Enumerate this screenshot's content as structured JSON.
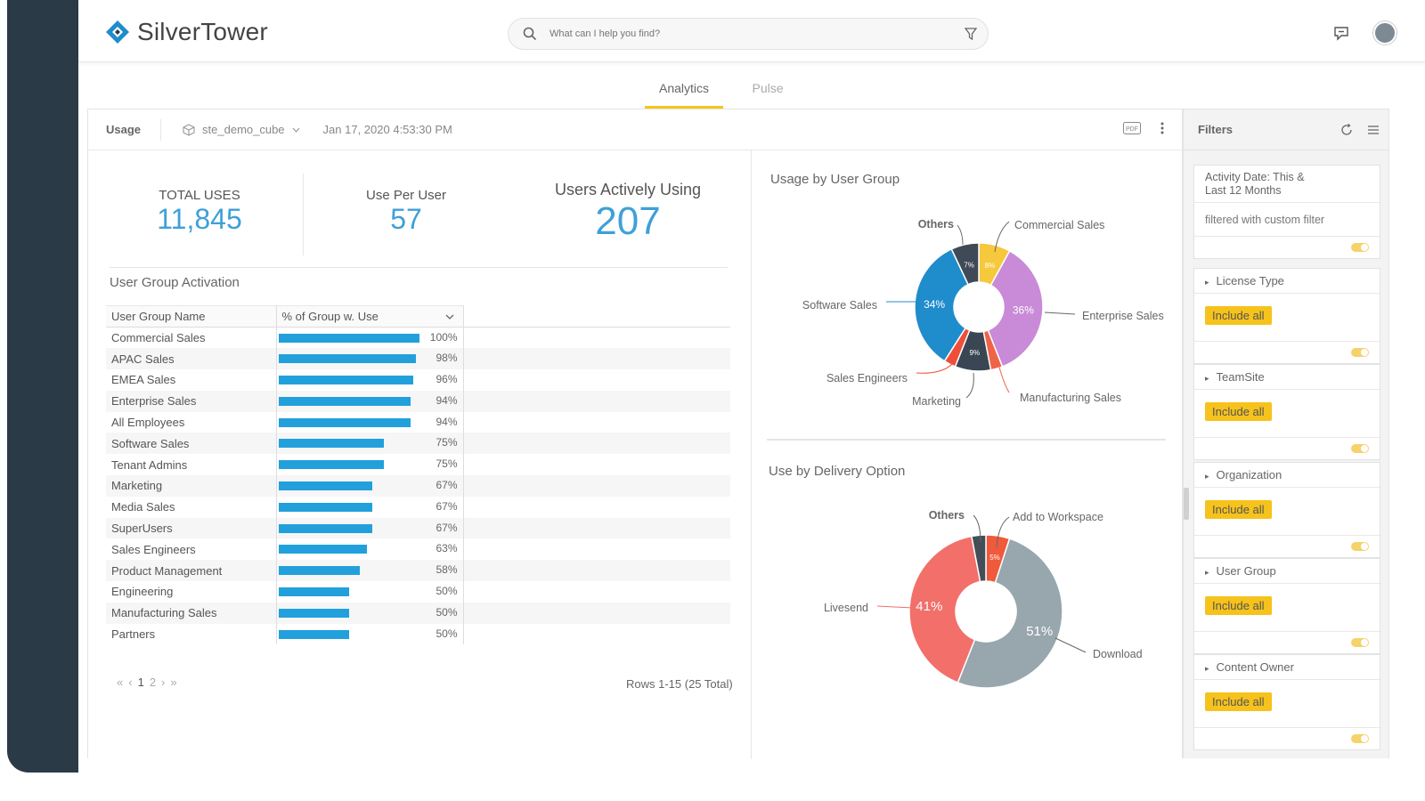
{
  "app": {
    "logo_text": "SilverTower"
  },
  "search": {
    "placeholder": "What can I help you find?"
  },
  "tabs": [
    {
      "label": "Analytics",
      "active": true
    },
    {
      "label": "Pulse",
      "active": false
    }
  ],
  "header": {
    "title": "Usage",
    "cube": "ste_demo_cube",
    "timestamp": "Jan 17, 2020 4:53:30 PM"
  },
  "kpis": [
    {
      "label": "TOTAL USES",
      "value": "11,845"
    },
    {
      "label": "Use Per User",
      "value": "57"
    },
    {
      "label": "Users Actively Using",
      "value": "207"
    }
  ],
  "activation": {
    "title": "User Group Activation",
    "col1": "User Group Name",
    "col2": "% of Group w. Use",
    "rows": [
      {
        "name": "Commercial Sales",
        "pct": 100,
        "label": "100%"
      },
      {
        "name": "APAC Sales",
        "pct": 98,
        "label": "98%"
      },
      {
        "name": "EMEA Sales",
        "pct": 96,
        "label": "96%"
      },
      {
        "name": "Enterprise Sales",
        "pct": 94,
        "label": "94%"
      },
      {
        "name": "All Employees",
        "pct": 94,
        "label": "94%"
      },
      {
        "name": "Software Sales",
        "pct": 75,
        "label": "75%"
      },
      {
        "name": "Tenant Admins",
        "pct": 75,
        "label": "75%"
      },
      {
        "name": "Marketing",
        "pct": 67,
        "label": "67%"
      },
      {
        "name": "Media Sales",
        "pct": 67,
        "label": "67%"
      },
      {
        "name": "SuperUsers",
        "pct": 67,
        "label": "67%"
      },
      {
        "name": "Sales Engineers",
        "pct": 63,
        "label": "63%"
      },
      {
        "name": "Product Management",
        "pct": 58,
        "label": "58%"
      },
      {
        "name": "Engineering",
        "pct": 50,
        "label": "50%"
      },
      {
        "name": "Manufacturing Sales",
        "pct": 50,
        "label": "50%"
      },
      {
        "name": "Partners",
        "pct": 50,
        "label": "50%"
      }
    ],
    "pager": {
      "first": "«",
      "prev": "‹",
      "pages": [
        "1",
        "2"
      ],
      "next": "›",
      "last": "»"
    },
    "rows_info": "Rows 1-15 (25 Total)"
  },
  "chart_data": [
    {
      "type": "pie",
      "title": "Usage by User Group",
      "slices": [
        {
          "name": "Commercial Sales",
          "value": 8,
          "label": "8%",
          "color": "#f6c83b"
        },
        {
          "name": "Enterprise Sales",
          "value": 36,
          "label": "36%",
          "color": "#c98ad8"
        },
        {
          "name": "Manufacturing Sales",
          "value": 3,
          "label": "",
          "color": "#ef6448"
        },
        {
          "name": "Marketing",
          "value": 9,
          "label": "9%",
          "color": "#3a4654"
        },
        {
          "name": "Sales Engineers",
          "value": 3,
          "label": "",
          "color": "#ef4f3a"
        },
        {
          "name": "Software Sales",
          "value": 34,
          "label": "34%",
          "color": "#1f8ccc"
        },
        {
          "name": "Others",
          "value": 7,
          "label": "7%",
          "color": "#3f4a56"
        }
      ]
    },
    {
      "type": "pie",
      "title": "Use by Delivery Option",
      "slices": [
        {
          "name": "Add to Workspace",
          "value": 5,
          "label": "5%",
          "color": "#ef5a3c"
        },
        {
          "name": "Download",
          "value": 51,
          "label": "51%",
          "color": "#98a6ae"
        },
        {
          "name": "Livesend",
          "value": 41,
          "label": "41%",
          "color": "#f26f6a"
        },
        {
          "name": "Others",
          "value": 3,
          "label": "",
          "color": "#444e58"
        }
      ]
    }
  ],
  "filters": {
    "title": "Filters",
    "activity": {
      "line1": "Activity Date: This &",
      "line2": "Last 12 Months",
      "desc": "filtered with custom filter"
    },
    "cards": [
      {
        "title": "License Type",
        "button": "Include all"
      },
      {
        "title": "TeamSite",
        "button": "Include all"
      },
      {
        "title": "Organization",
        "button": "Include all"
      },
      {
        "title": "User Group",
        "button": "Include all"
      },
      {
        "title": "Content Owner",
        "button": "Include all"
      }
    ]
  }
}
